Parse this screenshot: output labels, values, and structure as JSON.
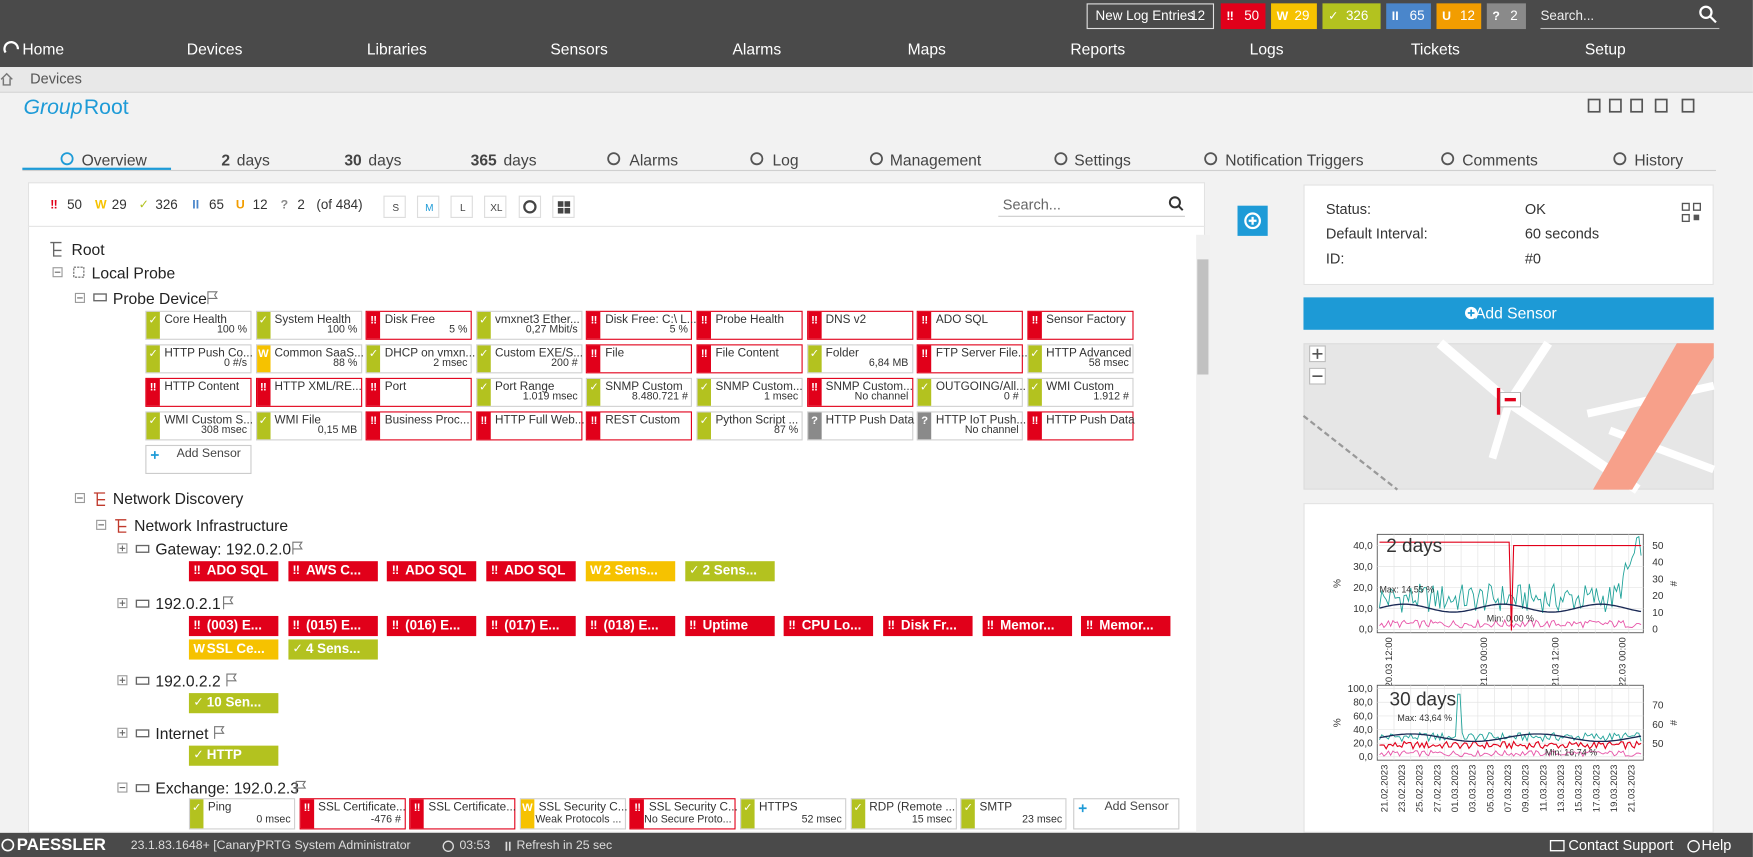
{
  "status_icons": {
    "up": "✓",
    "down": "‼",
    "warning": "W",
    "paused": "II",
    "unusual": "U",
    "unknown": "?"
  },
  "topbar": {
    "new_log_entries": {
      "label": "New Log Entries",
      "count": 12
    },
    "badges": [
      {
        "status": "down",
        "count": 50
      },
      {
        "status": "warning",
        "count": 29
      },
      {
        "status": "up",
        "count": 326
      },
      {
        "status": "paused",
        "count": 65
      },
      {
        "status": "unusual",
        "count": 12
      },
      {
        "status": "unknown",
        "count": 2
      }
    ],
    "search_placeholder": "Search..."
  },
  "nav": [
    "Home",
    "Devices",
    "Libraries",
    "Sensors",
    "Alarms",
    "Maps",
    "Reports",
    "Logs",
    "Tickets",
    "Setup"
  ],
  "breadcrumb": [
    "Devices"
  ],
  "page_title": {
    "prefix": "Group",
    "name": "Root"
  },
  "tabs": [
    {
      "label": "Overview"
    },
    {
      "number": 2,
      "label": "days"
    },
    {
      "number": 30,
      "label": "days"
    },
    {
      "number": 365,
      "label": "days"
    },
    {
      "label": "Alarms"
    },
    {
      "label": "Log"
    },
    {
      "label": "Management"
    },
    {
      "label": "Settings"
    },
    {
      "label": "Notification Triggers"
    },
    {
      "label": "Comments"
    },
    {
      "label": "History"
    }
  ],
  "filter": {
    "badges": [
      {
        "status": "down",
        "count": 50
      },
      {
        "status": "warning",
        "count": 29
      },
      {
        "status": "up",
        "count": 326
      },
      {
        "status": "paused",
        "count": 65
      },
      {
        "status": "unusual",
        "count": 12
      },
      {
        "status": "unknown",
        "count": 2
      }
    ],
    "total": "(of 484)",
    "sizes": [
      "S",
      "M",
      "L",
      "XL"
    ],
    "active_size": "M",
    "search_placeholder": "Search..."
  },
  "tree": {
    "root": "Root",
    "local_probe": "Local Probe",
    "probe_device": {
      "name": "Probe Device",
      "sensors": [
        {
          "name": "Core Health",
          "value": "100 %",
          "status": "up"
        },
        {
          "name": "System Health",
          "value": "100 %",
          "status": "up"
        },
        {
          "name": "Disk Free",
          "value": "5 %",
          "status": "down"
        },
        {
          "name": "vmxnet3 Ether...",
          "value": "0,27 Mbit/s",
          "status": "up"
        },
        {
          "name": "Disk Free: C:\\ L...",
          "value": "5 %",
          "status": "down"
        },
        {
          "name": "Probe Health",
          "status": "down"
        },
        {
          "name": "DNS v2",
          "status": "down"
        },
        {
          "name": "ADO SQL",
          "status": "down"
        },
        {
          "name": "Sensor Factory",
          "status": "down"
        },
        {
          "name": "HTTP Push Co...",
          "value": "0 #/s",
          "status": "up"
        },
        {
          "name": "Common SaaS...",
          "value": "88 %",
          "status": "warning"
        },
        {
          "name": "DHCP on vmxn...",
          "value": "2 msec",
          "status": "up"
        },
        {
          "name": "Custom EXE/S...",
          "value": "200 #",
          "status": "up"
        },
        {
          "name": "File",
          "status": "down"
        },
        {
          "name": "File Content",
          "status": "down"
        },
        {
          "name": "Folder",
          "value": "6,84 MB",
          "status": "up"
        },
        {
          "name": "FTP Server File...",
          "status": "down"
        },
        {
          "name": "HTTP Advanced",
          "value": "58 msec",
          "status": "up"
        },
        {
          "name": "HTTP Content",
          "status": "down"
        },
        {
          "name": "HTTP XML/RE...",
          "status": "down"
        },
        {
          "name": "Port",
          "status": "down"
        },
        {
          "name": "Port Range",
          "value": "1.019 msec",
          "status": "up"
        },
        {
          "name": "SNMP Custom",
          "value": "8.480.721 #",
          "status": "up"
        },
        {
          "name": "SNMP Custom...",
          "value": "1 msec",
          "status": "up"
        },
        {
          "name": "SNMP Custom...",
          "value": "No channel",
          "status": "down"
        },
        {
          "name": "OUTGOING/All...",
          "value": "0 #",
          "status": "up"
        },
        {
          "name": "WMI Custom",
          "value": "1.912 #",
          "status": "up"
        },
        {
          "name": "WMI Custom S...",
          "value": "308 msec",
          "status": "up"
        },
        {
          "name": "WMI File",
          "value": "0,15 MB",
          "status": "up"
        },
        {
          "name": "Business Proc...",
          "status": "down"
        },
        {
          "name": "HTTP Full Web...",
          "status": "down"
        },
        {
          "name": "REST Custom",
          "status": "down"
        },
        {
          "name": "Python Script ...",
          "value": "87 %",
          "status": "up"
        },
        {
          "name": "HTTP Push Data",
          "status": "unknown"
        },
        {
          "name": "HTTP IoT Push...",
          "value": "No channel",
          "status": "unknown"
        },
        {
          "name": "HTTP Push Data",
          "status": "down"
        }
      ],
      "add_sensor": "Add Sensor"
    },
    "network_discovery": "Network Discovery",
    "network_infrastructure": "Network Infrastructure",
    "devices": [
      {
        "name": "Gateway: 192.0.2.0",
        "tags": [
          {
            "label": "ADO SQL",
            "status": "down"
          },
          {
            "label": "AWS C...",
            "status": "down"
          },
          {
            "label": "ADO SQL",
            "status": "down"
          },
          {
            "label": "ADO SQL",
            "status": "down"
          },
          {
            "label": "2 Sens...",
            "status": "warning"
          },
          {
            "label": "2 Sens...",
            "status": "up"
          }
        ]
      },
      {
        "name": "192.0.2.1",
        "tags": [
          {
            "label": "(003) E...",
            "status": "down"
          },
          {
            "label": "(015) E...",
            "status": "down"
          },
          {
            "label": "(016) E...",
            "status": "down"
          },
          {
            "label": "(017) E...",
            "status": "down"
          },
          {
            "label": "(018) E...",
            "status": "down"
          },
          {
            "label": "Uptime",
            "status": "down"
          },
          {
            "label": "CPU Lo...",
            "status": "down"
          },
          {
            "label": "Disk Fr...",
            "status": "down"
          },
          {
            "label": "Memor...",
            "status": "down"
          },
          {
            "label": "Memor...",
            "status": "down"
          },
          {
            "label": "SSL Ce...",
            "status": "warning"
          },
          {
            "label": "4 Sens...",
            "status": "up"
          }
        ]
      },
      {
        "name": "192.0.2.2",
        "tags": [
          {
            "label": "10 Sen...",
            "status": "up"
          }
        ]
      },
      {
        "name": "Internet",
        "tags": [
          {
            "label": "HTTP",
            "status": "up"
          }
        ]
      },
      {
        "name": "Exchange: 192.0.2.3",
        "sensors": [
          {
            "name": "Ping",
            "value": "0 msec",
            "status": "up"
          },
          {
            "name": "SSL Certificate...",
            "value": "-476 #",
            "status": "down"
          },
          {
            "name": "SSL Certificate...",
            "status": "down"
          },
          {
            "name": "SSL Security C...",
            "value": "Weak Protocols ...",
            "status": "warning"
          },
          {
            "name": "SSL Security C...",
            "value": "No Secure Proto...",
            "status": "down"
          },
          {
            "name": "HTTPS",
            "value": "52 msec",
            "status": "up"
          },
          {
            "name": "RDP (Remote ...",
            "value": "15 msec",
            "status": "up"
          },
          {
            "name": "SMTP",
            "value": "23 msec",
            "status": "up"
          }
        ],
        "add_sensor": "Add Sensor"
      }
    ]
  },
  "details": [
    {
      "label": "Status:",
      "value": "OK"
    },
    {
      "label": "Default Interval:",
      "value": "60 seconds"
    },
    {
      "label": "ID:",
      "value": "#0"
    }
  ],
  "add_sensor_button": "Add Sensor",
  "graphs": [
    {
      "title": "2 days",
      "left_ticks": [
        "40,0",
        "30,0",
        "20,0",
        "10,0",
        "0,0"
      ],
      "right_ticks": [
        "50",
        "40",
        "30",
        "20",
        "10",
        "0"
      ],
      "left_unit": "%",
      "right_unit": "#",
      "x_labels": [
        "20.03 12:00",
        "21.03 00:00",
        "21.03 12:00",
        "22.03 00:00"
      ],
      "max_label": "Max: 14,55 %",
      "min_label": "Min: 0,00 %"
    },
    {
      "title": "30 days",
      "left_ticks": [
        "100,0",
        "80,0",
        "60,0",
        "40,0",
        "20,0",
        "0,0"
      ],
      "right_ticks": [
        "70",
        "60",
        "50"
      ],
      "left_unit": "%",
      "right_unit": "#",
      "x_labels": [
        "21.02.2023",
        "23.02.2023",
        "25.02.2023",
        "27.02.2023",
        "01.03.2023",
        "03.03.2023",
        "05.03.2023",
        "07.03.2023",
        "09.03.2023",
        "11.03.2023",
        "13.03.2023",
        "15.03.2023",
        "17.03.2023",
        "19.03.2023",
        "21.03.2023"
      ],
      "max_label": "Max: 43,64 %",
      "min_label": "Min: 16,74 %"
    }
  ],
  "footer": {
    "brand": "PAESSLER",
    "version": "23.1.83.1648+ [Canary]",
    "user": "PRTG System Administrator",
    "time": "03:53",
    "refresh": "Refresh in 25 sec",
    "contact": "Contact Support",
    "help": "Help"
  }
}
